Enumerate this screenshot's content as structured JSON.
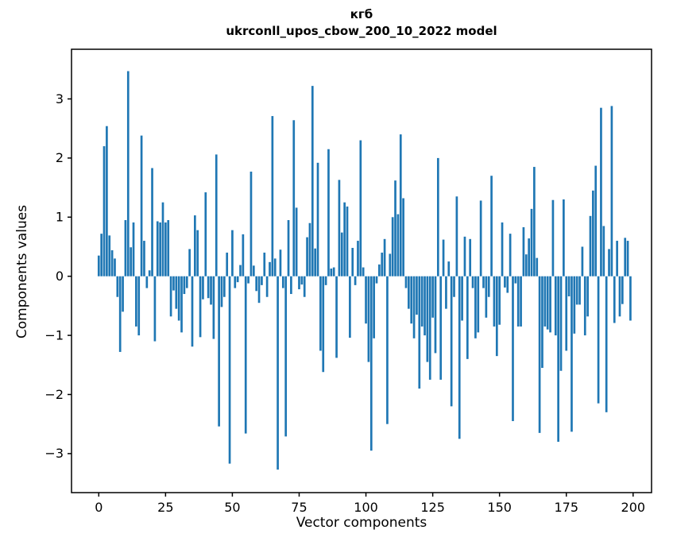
{
  "figure": {
    "title_line1": "кгб",
    "title_line2": "ukrconll_upos_cbow_200_10_2022 model"
  },
  "chart_data": {
    "type": "bar",
    "title": "кгб",
    "subtitle": "ukrconll_upos_cbow_200_10_2022 model",
    "xlabel": "Vector components",
    "ylabel": "Components values",
    "bar_color": "#1f77b4",
    "spine_color": "#000000",
    "x_ticks": [
      0,
      25,
      50,
      75,
      100,
      125,
      150,
      175,
      200
    ],
    "y_ticks": [
      3,
      2,
      1,
      0,
      -1,
      -2,
      -3
    ],
    "xlim": [
      -10.2,
      206.9
    ],
    "ylim": [
      -3.66,
      3.84
    ],
    "x_start_index": 0,
    "n_components": 200,
    "bar_rel_width": 0.8,
    "legend": "none",
    "grid": false,
    "values": [
      0.35,
      0.72,
      2.2,
      2.54,
      0.69,
      0.44,
      0.3,
      -0.35,
      -1.28,
      -0.6,
      0.95,
      3.47,
      0.49,
      0.91,
      -0.85,
      -1.0,
      2.38,
      0.6,
      -0.2,
      0.1,
      1.83,
      -1.1,
      0.93,
      0.91,
      1.25,
      0.91,
      0.95,
      -0.68,
      -0.24,
      -0.55,
      -0.75,
      -0.95,
      -0.3,
      -0.2,
      0.46,
      -1.19,
      1.03,
      0.78,
      -1.03,
      -0.39,
      1.42,
      -0.37,
      -0.48,
      -1.06,
      2.06,
      -2.54,
      -0.52,
      -0.35,
      0.4,
      -3.17,
      0.78,
      -0.2,
      -0.1,
      0.19,
      0.71,
      -2.66,
      -0.12,
      1.77,
      0.18,
      -0.25,
      -0.45,
      -0.15,
      0.4,
      -0.35,
      0.24,
      2.71,
      0.3,
      -3.27,
      0.45,
      -0.2,
      -2.71,
      0.95,
      -0.3,
      2.64,
      1.16,
      -0.22,
      -0.14,
      -0.35,
      0.66,
      0.9,
      3.22,
      0.47,
      1.92,
      -1.26,
      -1.62,
      -0.15,
      2.15,
      0.13,
      0.15,
      -1.38,
      1.63,
      0.74,
      1.25,
      1.18,
      -1.04,
      0.48,
      -0.15,
      0.6,
      2.3,
      0.15,
      -0.8,
      -1.45,
      -2.95,
      -1.05,
      -0.12,
      0.2,
      0.4,
      0.63,
      -2.5,
      0.38,
      1.0,
      1.62,
      1.05,
      2.4,
      1.32,
      -0.2,
      -0.55,
      -0.8,
      -1.05,
      -0.65,
      -1.9,
      -0.85,
      -1.0,
      -1.45,
      -1.75,
      -0.7,
      -1.3,
      2.0,
      -1.75,
      0.62,
      -0.55,
      0.25,
      -2.2,
      -0.35,
      1.35,
      -2.75,
      -0.75,
      0.67,
      -1.4,
      0.63,
      -0.2,
      -1.05,
      -0.95,
      1.28,
      -0.2,
      -0.7,
      -0.35,
      1.7,
      -0.85,
      -1.35,
      -0.82,
      0.91,
      -0.19,
      -0.28,
      0.72,
      -2.45,
      -0.12,
      -0.85,
      -0.85,
      0.83,
      0.37,
      0.64,
      1.14,
      1.85,
      0.31,
      -2.65,
      -1.55,
      -0.85,
      -0.9,
      -0.95,
      1.29,
      -1.0,
      -2.8,
      -1.6,
      1.3,
      -1.26,
      -0.34,
      -2.63,
      -0.97,
      -0.48,
      -0.48,
      0.5,
      -1.0,
      -0.68,
      1.02,
      1.45,
      1.87,
      -2.15,
      2.85,
      0.85,
      -2.3,
      0.46,
      2.88,
      -0.79,
      0.6,
      -0.68,
      -0.47,
      0.65,
      0.6,
      -0.75
    ]
  }
}
